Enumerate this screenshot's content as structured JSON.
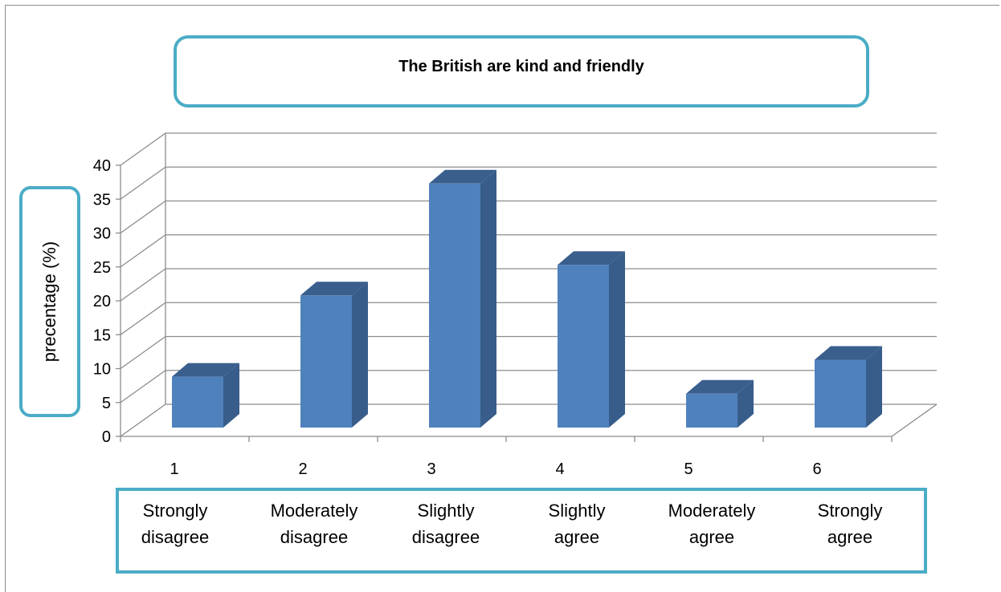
{
  "chart_data": {
    "type": "bar",
    "title": "The British are kind and friendly",
    "ylabel": "precentage (%)",
    "xlabel": "",
    "categories": [
      "1",
      "2",
      "3",
      "4",
      "5",
      "6"
    ],
    "values": [
      7.5,
      19.5,
      36,
      24,
      5,
      10
    ],
    "ylim": [
      0,
      40
    ],
    "yticks": [
      "0",
      "5",
      "10",
      "15",
      "20",
      "25",
      "30",
      "35",
      "40"
    ],
    "grid": true,
    "bar_color": "#4f81bd",
    "bar_side_color": "#385d8a",
    "bar_top_color": "#3a5f8d",
    "category_descriptions": [
      [
        "Strongly",
        "disagree"
      ],
      [
        "Moderately",
        "disagree"
      ],
      [
        "Slightly",
        "disagree"
      ],
      [
        "Slightly",
        "agree"
      ],
      [
        "Moderately",
        "agree"
      ],
      [
        "Strongly",
        "agree"
      ]
    ],
    "accent_color": "#4bacc6"
  }
}
